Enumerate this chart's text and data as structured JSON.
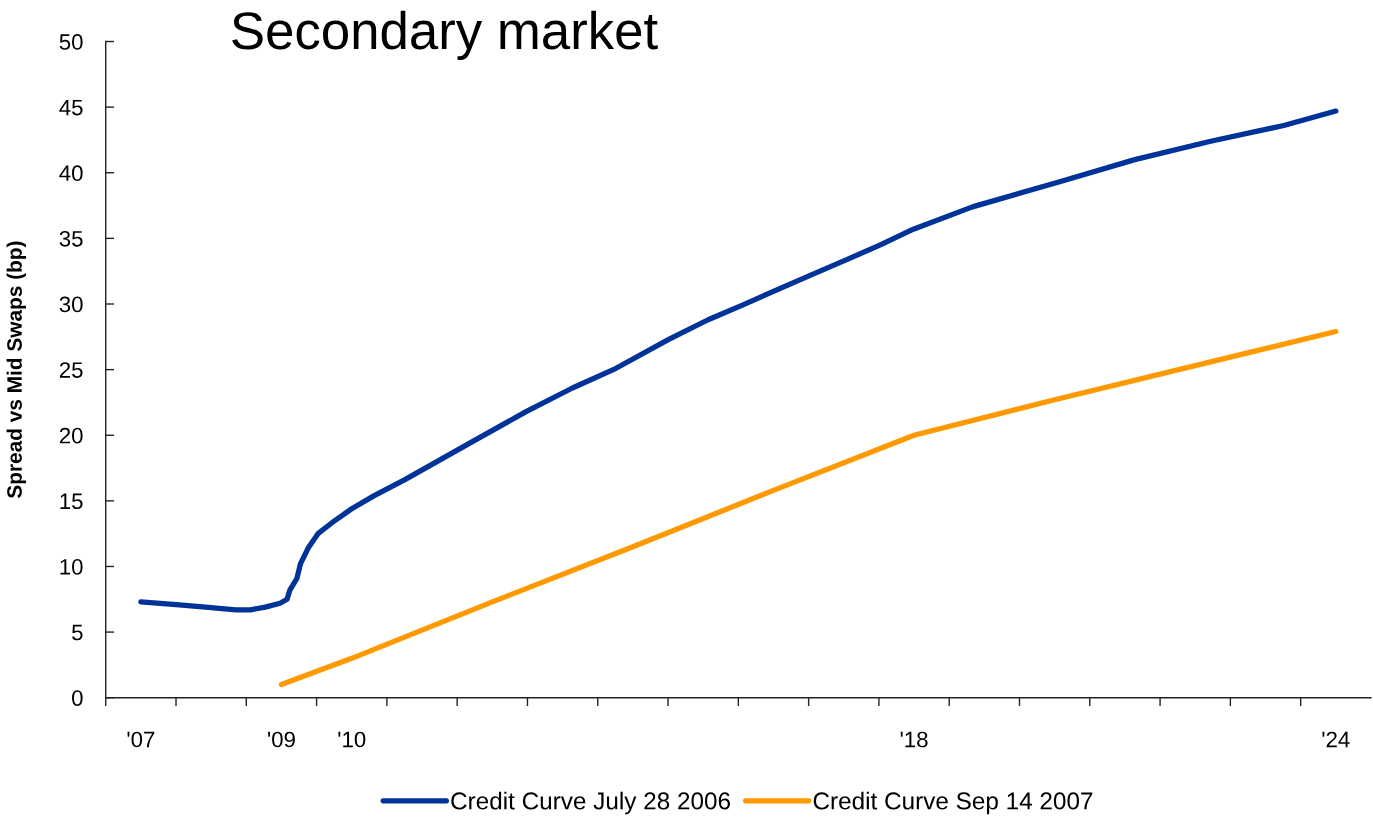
{
  "chart_data": {
    "type": "line",
    "title": "Secondary market",
    "ylabel": "Spread vs Mid Swaps (bp)",
    "xlim": [
      2006.5,
      2024.5
    ],
    "ylim": [
      0,
      50
    ],
    "yticks": [
      0,
      5,
      10,
      15,
      20,
      25,
      30,
      35,
      40,
      45,
      50
    ],
    "xticks": [
      {
        "value": 2006.5,
        "label": null
      },
      {
        "value": 2007,
        "label": "'07"
      },
      {
        "value": 2007.5,
        "label": null
      },
      {
        "value": 2008.5,
        "label": null
      },
      {
        "value": 2009,
        "label": "'09"
      },
      {
        "value": 2009.5,
        "label": null
      },
      {
        "value": 2010,
        "label": "'10"
      },
      {
        "value": 2010.5,
        "label": null
      },
      {
        "value": 2011.5,
        "label": null
      },
      {
        "value": 2012.5,
        "label": null
      },
      {
        "value": 2013.5,
        "label": null
      },
      {
        "value": 2014.5,
        "label": null
      },
      {
        "value": 2015.5,
        "label": null
      },
      {
        "value": 2016.5,
        "label": null
      },
      {
        "value": 2017.5,
        "label": null
      },
      {
        "value": 2018,
        "label": "'18"
      },
      {
        "value": 2018.5,
        "label": null
      },
      {
        "value": 2019.5,
        "label": null
      },
      {
        "value": 2020.5,
        "label": null
      },
      {
        "value": 2021.5,
        "label": null
      },
      {
        "value": 2022.5,
        "label": null
      },
      {
        "value": 2023.5,
        "label": null
      },
      {
        "value": 2024,
        "label": "'24"
      }
    ],
    "legend": "bottom",
    "marker": "none",
    "line_style": "solid",
    "series": [
      {
        "name": "Credit Curve July 28 2006",
        "color": "#003399",
        "x": [
          2007.0,
          2007.5,
          2007.92,
          2008.35,
          2008.56,
          2008.77,
          2008.98,
          2009.08,
          2009.12,
          2009.22,
          2009.27,
          2009.38,
          2009.52,
          2009.76,
          2010.0,
          2010.32,
          2010.75,
          2011.78,
          2012.48,
          2013.14,
          2013.76,
          2014.51,
          2015.07,
          2015.55,
          2016.53,
          2017.05,
          2017.52,
          2017.99,
          2018.83,
          2020.06,
          2021.14,
          2022.22,
          2023.26,
          2024.0
        ],
        "values": [
          7.3,
          7.1,
          6.9,
          6.7,
          6.7,
          6.9,
          7.2,
          7.5,
          8.2,
          9.1,
          10.2,
          11.4,
          12.5,
          13.5,
          14.4,
          15.4,
          16.6,
          19.7,
          21.8,
          23.6,
          25.1,
          27.3,
          28.8,
          29.9,
          32.2,
          33.4,
          34.5,
          35.7,
          37.4,
          39.3,
          41.0,
          42.4,
          43.6,
          44.7
        ]
      },
      {
        "name": "Credit Curve Sep 14 2007",
        "color": "#ff9900",
        "x": [
          2009,
          2010,
          2012,
          2014,
          2016,
          2018,
          2020,
          2022,
          2024
        ],
        "values": [
          1.0,
          3.0,
          7.3,
          11.5,
          15.8,
          20.0,
          22.7,
          25.3,
          27.9
        ]
      }
    ]
  }
}
